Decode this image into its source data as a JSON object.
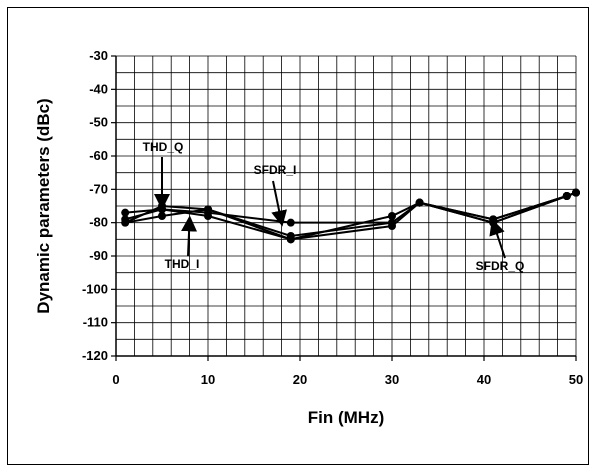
{
  "chart_data": {
    "type": "line",
    "title": "",
    "xlabel": "Fin (MHz)",
    "ylabel": "Dynamic parameters (dBc)",
    "xlim": [
      0,
      50
    ],
    "ylim": [
      -120,
      -30
    ],
    "xticks": [
      0,
      10,
      20,
      30,
      40,
      50
    ],
    "yticks": [
      -30,
      -40,
      -50,
      -60,
      -70,
      -80,
      -90,
      -100,
      -110,
      -120
    ],
    "grid": true,
    "legend": "none",
    "series": [
      {
        "name": "THD_Q",
        "x": [
          1,
          5,
          10,
          19,
          30,
          33,
          41,
          49,
          50
        ],
        "y": [
          -80,
          -75,
          -76,
          -84,
          -80,
          -74,
          -80,
          -72,
          -71
        ]
      },
      {
        "name": "THD_I",
        "x": [
          1,
          5,
          10,
          19,
          30,
          33,
          41,
          49,
          50
        ],
        "y": [
          -79,
          -76,
          -78,
          -85,
          -81,
          -74,
          -80,
          -72,
          -71
        ]
      },
      {
        "name": "SFDR_I",
        "x": [
          1,
          5,
          10,
          19,
          30,
          33,
          41,
          49,
          50
        ],
        "y": [
          -77,
          -76,
          -77,
          -80,
          -80,
          -74,
          -79,
          -72,
          -71
        ]
      },
      {
        "name": "SFDR_Q",
        "x": [
          1,
          5,
          10,
          19,
          30,
          33,
          41,
          49,
          50
        ],
        "y": [
          -80,
          -78,
          -76,
          -85,
          -78,
          -74,
          -79,
          -72,
          -71
        ]
      }
    ],
    "annotations": [
      {
        "text": "THD_Q",
        "target_x": 5,
        "target_y": -75
      },
      {
        "text": "THD_I",
        "target_x": 8,
        "target_y": -79
      },
      {
        "text": "SFDR_I",
        "target_x": 18,
        "target_y": -80
      },
      {
        "text": "SFDR_Q",
        "target_x": 41,
        "target_y": -80
      }
    ]
  }
}
